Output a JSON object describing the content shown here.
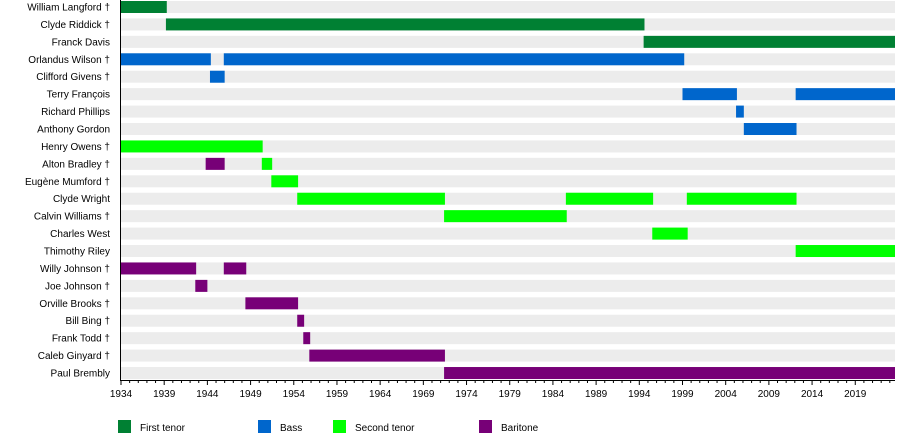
{
  "chart_data": {
    "type": "timeline",
    "x_axis": {
      "range": [
        1934,
        2023.6
      ],
      "major_ticks": [
        1934,
        1939,
        1944,
        1949,
        1954,
        1959,
        1964,
        1969,
        1974,
        1979,
        1984,
        1989,
        1994,
        1999,
        2004,
        2009,
        2014,
        2019
      ],
      "minor_tick_step": 1
    },
    "colors": {
      "First tenor": "#008033",
      "Bass": "#0066cc",
      "Second tenor": "#00ff00",
      "Baritone": "#770077",
      "background": "#ececec"
    },
    "legend": {
      "placement": "bottom",
      "entries": [
        "First tenor",
        "Bass",
        "Second tenor",
        "Baritone"
      ]
    },
    "members": [
      {
        "name": "William Langford †",
        "periods": [
          {
            "role": "First tenor",
            "start": 1934,
            "end": 1939.3
          }
        ]
      },
      {
        "name": "Clyde Riddick †",
        "periods": [
          {
            "role": "First tenor",
            "start": 1939.2,
            "end": 1994.6
          }
        ]
      },
      {
        "name": "Franck Davis",
        "periods": [
          {
            "role": "First tenor",
            "start": 1994.5,
            "end": 2023.6
          }
        ]
      },
      {
        "name": "Orlandus Wilson †",
        "periods": [
          {
            "role": "Bass",
            "start": 1934,
            "end": 1944.4
          },
          {
            "role": "Bass",
            "start": 1945.9,
            "end": 1999.2
          }
        ]
      },
      {
        "name": "Clifford Givens †",
        "periods": [
          {
            "role": "Bass",
            "start": 1944.3,
            "end": 1946
          }
        ]
      },
      {
        "name": "Terry François",
        "periods": [
          {
            "role": "Bass",
            "start": 1999,
            "end": 2005.3
          },
          {
            "role": "Bass",
            "start": 2012.1,
            "end": 2023.6
          }
        ]
      },
      {
        "name": "Richard Phillips",
        "periods": [
          {
            "role": "Bass",
            "start": 2005.2,
            "end": 2006.1
          }
        ]
      },
      {
        "name": "Anthony Gordon",
        "periods": [
          {
            "role": "Bass",
            "start": 2006.1,
            "end": 2012.2
          }
        ]
      },
      {
        "name": "Henry Owens †",
        "periods": [
          {
            "role": "Second tenor",
            "start": 1934,
            "end": 1950.4
          }
        ]
      },
      {
        "name": "Alton Bradley †",
        "periods": [
          {
            "role": "Baritone",
            "start": 1943.8,
            "end": 1946
          },
          {
            "role": "Second tenor",
            "start": 1950.3,
            "end": 1951.5
          }
        ]
      },
      {
        "name": "Eugène Mumford †",
        "periods": [
          {
            "role": "Second tenor",
            "start": 1951.4,
            "end": 1954.5
          }
        ]
      },
      {
        "name": "Clyde Wright",
        "periods": [
          {
            "role": "Second tenor",
            "start": 1954.4,
            "end": 1971.5
          },
          {
            "role": "Second tenor",
            "start": 1985.5,
            "end": 1995.6
          },
          {
            "role": "Second tenor",
            "start": 1999.5,
            "end": 2012.2
          }
        ]
      },
      {
        "name": "Calvin Williams †",
        "periods": [
          {
            "role": "Second tenor",
            "start": 1971.4,
            "end": 1985.6
          }
        ]
      },
      {
        "name": "Charles West",
        "periods": [
          {
            "role": "Second tenor",
            "start": 1995.5,
            "end": 1999.6
          }
        ]
      },
      {
        "name": "Thimothy Riley",
        "periods": [
          {
            "role": "Second tenor",
            "start": 2012.1,
            "end": 2023.6
          }
        ]
      },
      {
        "name": "Willy Johnson †",
        "periods": [
          {
            "role": "Baritone",
            "start": 1934,
            "end": 1942.7
          },
          {
            "role": "Baritone",
            "start": 1945.9,
            "end": 1948.5
          }
        ]
      },
      {
        "name": "Joe Johnson †",
        "periods": [
          {
            "role": "Baritone",
            "start": 1942.6,
            "end": 1944
          }
        ]
      },
      {
        "name": "Orville Brooks †",
        "periods": [
          {
            "role": "Baritone",
            "start": 1948.4,
            "end": 1954.5
          }
        ]
      },
      {
        "name": "Bill Bing †",
        "periods": [
          {
            "role": "Baritone",
            "start": 1954.4,
            "end": 1955.2
          }
        ]
      },
      {
        "name": "Frank Todd †",
        "periods": [
          {
            "role": "Baritone",
            "start": 1955.1,
            "end": 1955.9
          }
        ]
      },
      {
        "name": "Caleb Ginyard †",
        "periods": [
          {
            "role": "Baritone",
            "start": 1955.8,
            "end": 1971.5
          }
        ]
      },
      {
        "name": "Paul Brembly",
        "periods": [
          {
            "role": "Baritone",
            "start": 1971.4,
            "end": 2023.6
          }
        ]
      }
    ]
  }
}
